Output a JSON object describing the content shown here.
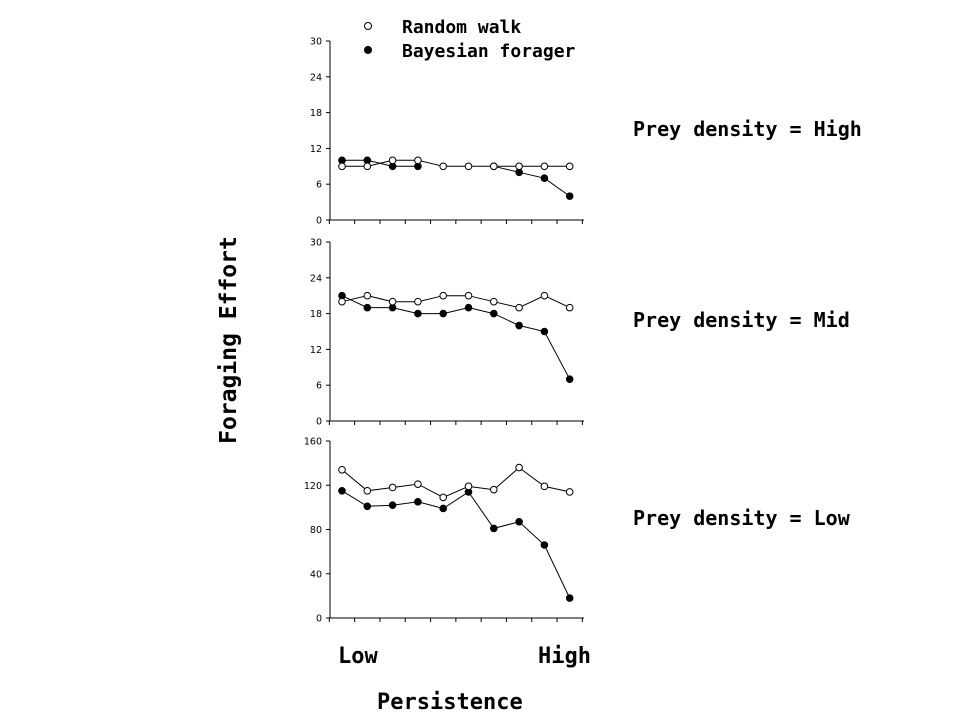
{
  "chart_data": [
    {
      "type": "line",
      "annotation": "Prey density = High",
      "ylim": [
        0,
        30
      ],
      "yticks": [
        "0",
        "6",
        "12",
        "18",
        "24",
        "30"
      ],
      "x": [
        1,
        2,
        3,
        4,
        5,
        6,
        7,
        8,
        9,
        10
      ],
      "series": [
        {
          "name": "Random walk",
          "values": [
            9,
            9,
            10,
            10,
            9,
            9,
            9,
            9,
            9,
            9
          ]
        },
        {
          "name": "Bayesian forager",
          "values": [
            10,
            10,
            9,
            9,
            null,
            null,
            9,
            8,
            7,
            4
          ]
        }
      ]
    },
    {
      "type": "line",
      "annotation": "Prey density = Mid",
      "ylim": [
        0,
        30
      ],
      "yticks": [
        "0",
        "6",
        "12",
        "18",
        "24",
        "30"
      ],
      "x": [
        1,
        2,
        3,
        4,
        5,
        6,
        7,
        8,
        9,
        10
      ],
      "series": [
        {
          "name": "Random walk",
          "values": [
            20,
            21,
            20,
            20,
            21,
            21,
            20,
            19,
            21,
            19
          ]
        },
        {
          "name": "Bayesian forager",
          "values": [
            21,
            19,
            19,
            18,
            18,
            19,
            18,
            16,
            15,
            7
          ]
        }
      ]
    },
    {
      "type": "line",
      "annotation": "Prey density = Low",
      "ylim": [
        0,
        160
      ],
      "yticks": [
        "0",
        "40",
        "80",
        "120",
        "160"
      ],
      "x": [
        1,
        2,
        3,
        4,
        5,
        6,
        7,
        8,
        9,
        10
      ],
      "series": [
        {
          "name": "Random walk",
          "values": [
            134,
            115,
            118,
            121,
            109,
            119,
            116,
            136,
            119,
            114
          ]
        },
        {
          "name": "Bayesian forager",
          "values": [
            115,
            101,
            102,
            105,
            99,
            114,
            81,
            87,
            66,
            18
          ]
        }
      ]
    }
  ],
  "figure": {
    "ylabel": "Foraging Effort",
    "xlabel": "Persistence",
    "x_low_label": "Low",
    "x_high_label": "High",
    "legend": {
      "open_label": "Random walk",
      "filled_label": "Bayesian forager",
      "placement": "top"
    },
    "colors": {
      "line": "#000000",
      "open_marker_fill": "#ffffff",
      "filled_marker_fill": "#000000"
    }
  }
}
